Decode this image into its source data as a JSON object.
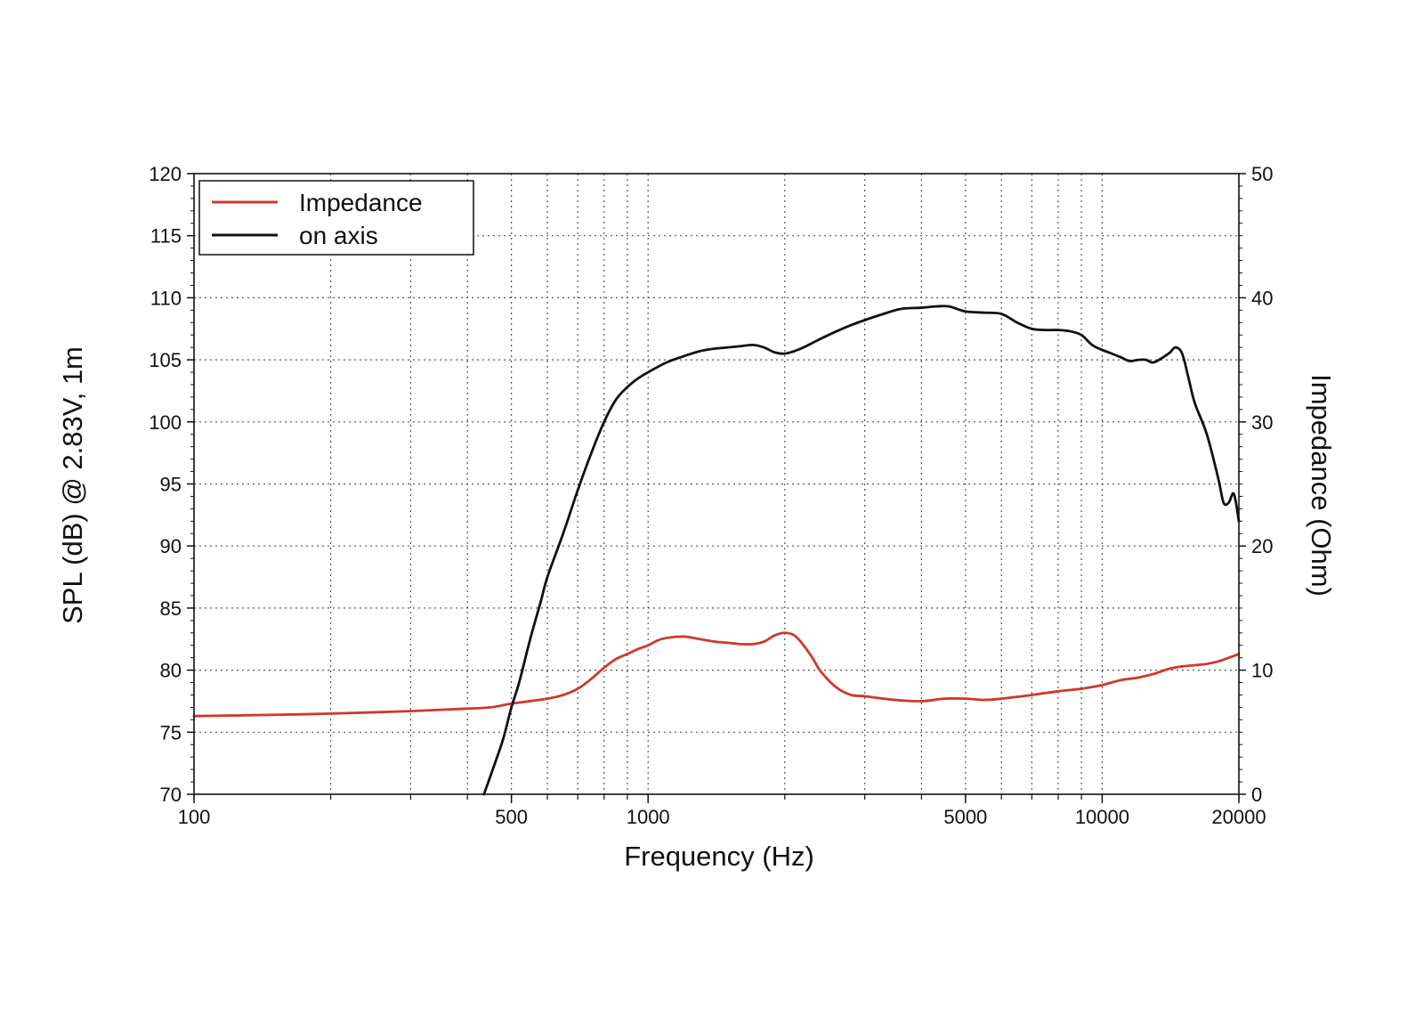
{
  "chart_data": {
    "type": "line",
    "xlabel": "Frequency (Hz)",
    "ylabel": "SPL (dB) @ 2.83V, 1m",
    "y2label": "Impedance (Ohm)",
    "xscale": "log",
    "xlim": [
      100,
      20000
    ],
    "ylim": [
      70,
      120
    ],
    "y2lim": [
      0,
      50
    ],
    "grid": true,
    "legend_position": "top-left",
    "x_ticks": [
      {
        "value": 100,
        "label": "100"
      },
      {
        "value": 500,
        "label": "500"
      },
      {
        "value": 1000,
        "label": "1000"
      },
      {
        "value": 5000,
        "label": "5000"
      },
      {
        "value": 10000,
        "label": "10000"
      },
      {
        "value": 20000,
        "label": "20000"
      }
    ],
    "x_grid": [
      200,
      300,
      400,
      500,
      600,
      700,
      800,
      900,
      1000,
      2000,
      3000,
      4000,
      5000,
      6000,
      7000,
      8000,
      9000,
      10000
    ],
    "y_ticks": [
      "70",
      "75",
      "80",
      "85",
      "90",
      "95",
      "100",
      "105",
      "110",
      "115",
      "120"
    ],
    "y2_ticks": [
      "0",
      "10",
      "20",
      "30",
      "40",
      "50"
    ],
    "series": [
      {
        "name": "Impedance",
        "color": "#d0382b",
        "axis": "right",
        "points": [
          [
            100,
            6.3
          ],
          [
            150,
            6.4
          ],
          [
            200,
            6.5
          ],
          [
            300,
            6.7
          ],
          [
            400,
            6.9
          ],
          [
            450,
            7.0
          ],
          [
            500,
            7.3
          ],
          [
            600,
            7.7
          ],
          [
            650,
            8.0
          ],
          [
            700,
            8.5
          ],
          [
            750,
            9.3
          ],
          [
            800,
            10.2
          ],
          [
            850,
            10.9
          ],
          [
            900,
            11.3
          ],
          [
            950,
            11.7
          ],
          [
            1000,
            12.0
          ],
          [
            1050,
            12.4
          ],
          [
            1100,
            12.6
          ],
          [
            1200,
            12.7
          ],
          [
            1300,
            12.5
          ],
          [
            1400,
            12.3
          ],
          [
            1500,
            12.2
          ],
          [
            1600,
            12.1
          ],
          [
            1700,
            12.1
          ],
          [
            1800,
            12.3
          ],
          [
            1900,
            12.8
          ],
          [
            2000,
            13.0
          ],
          [
            2100,
            12.8
          ],
          [
            2200,
            12.0
          ],
          [
            2300,
            11.0
          ],
          [
            2400,
            9.9
          ],
          [
            2600,
            8.6
          ],
          [
            2800,
            8.0
          ],
          [
            3000,
            7.9
          ],
          [
            3500,
            7.6
          ],
          [
            4000,
            7.5
          ],
          [
            4500,
            7.7
          ],
          [
            5000,
            7.7
          ],
          [
            5500,
            7.6
          ],
          [
            6000,
            7.7
          ],
          [
            7000,
            8.0
          ],
          [
            8000,
            8.3
          ],
          [
            9000,
            8.5
          ],
          [
            10000,
            8.8
          ],
          [
            11000,
            9.2
          ],
          [
            12000,
            9.4
          ],
          [
            13000,
            9.7
          ],
          [
            14000,
            10.1
          ],
          [
            15000,
            10.3
          ],
          [
            16000,
            10.4
          ],
          [
            17000,
            10.5
          ],
          [
            18000,
            10.7
          ],
          [
            19000,
            11.0
          ],
          [
            20000,
            11.3
          ]
        ]
      },
      {
        "name": "on axis",
        "color": "#111111",
        "axis": "left",
        "points": [
          [
            435,
            70.0
          ],
          [
            460,
            72.5
          ],
          [
            480,
            74.5
          ],
          [
            500,
            77.0
          ],
          [
            520,
            79.0
          ],
          [
            550,
            82.5
          ],
          [
            580,
            85.5
          ],
          [
            600,
            87.5
          ],
          [
            650,
            91.0
          ],
          [
            700,
            94.5
          ],
          [
            750,
            97.5
          ],
          [
            800,
            100.0
          ],
          [
            850,
            101.8
          ],
          [
            900,
            102.8
          ],
          [
            950,
            103.5
          ],
          [
            1000,
            104.0
          ],
          [
            1100,
            104.8
          ],
          [
            1200,
            105.3
          ],
          [
            1300,
            105.7
          ],
          [
            1400,
            105.9
          ],
          [
            1500,
            106.0
          ],
          [
            1600,
            106.1
          ],
          [
            1700,
            106.2
          ],
          [
            1800,
            106.0
          ],
          [
            1900,
            105.6
          ],
          [
            2000,
            105.5
          ],
          [
            2100,
            105.7
          ],
          [
            2200,
            106.0
          ],
          [
            2400,
            106.7
          ],
          [
            2600,
            107.3
          ],
          [
            2800,
            107.8
          ],
          [
            3000,
            108.2
          ],
          [
            3300,
            108.7
          ],
          [
            3600,
            109.1
          ],
          [
            4000,
            109.2
          ],
          [
            4300,
            109.3
          ],
          [
            4600,
            109.3
          ],
          [
            5000,
            108.9
          ],
          [
            5500,
            108.8
          ],
          [
            6000,
            108.7
          ],
          [
            6500,
            108.0
          ],
          [
            7000,
            107.5
          ],
          [
            7500,
            107.4
          ],
          [
            8000,
            107.4
          ],
          [
            8500,
            107.3
          ],
          [
            9000,
            107.0
          ],
          [
            9500,
            106.2
          ],
          [
            10000,
            105.8
          ],
          [
            10500,
            105.5
          ],
          [
            11000,
            105.2
          ],
          [
            11500,
            104.9
          ],
          [
            12000,
            105.0
          ],
          [
            12500,
            105.0
          ],
          [
            13000,
            104.8
          ],
          [
            14000,
            105.5
          ],
          [
            14500,
            106.0
          ],
          [
            15000,
            105.5
          ],
          [
            15500,
            103.5
          ],
          [
            16000,
            101.5
          ],
          [
            17000,
            99.0
          ],
          [
            18000,
            95.5
          ],
          [
            18500,
            93.5
          ],
          [
            19000,
            93.5
          ],
          [
            19500,
            94.2
          ],
          [
            20000,
            92.0
          ]
        ]
      }
    ]
  }
}
